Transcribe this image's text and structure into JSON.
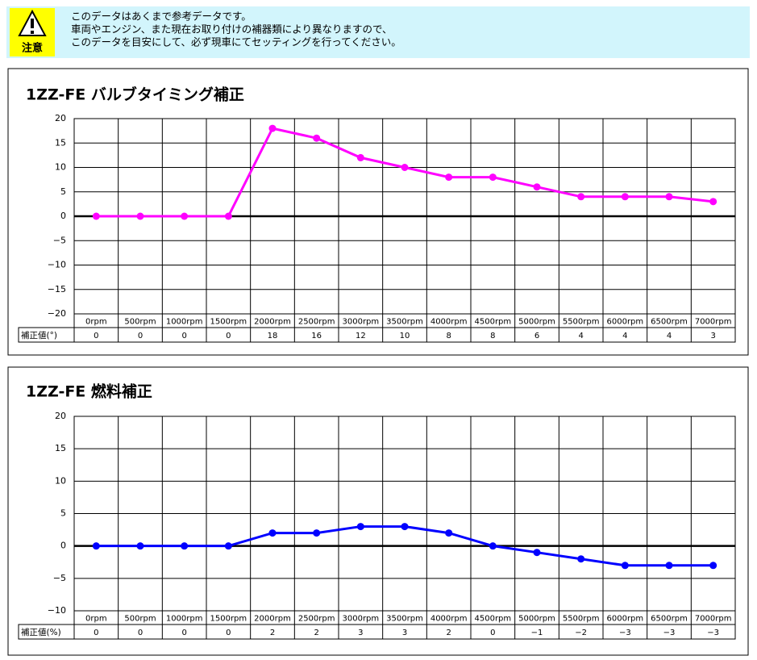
{
  "notice": {
    "label": "注意",
    "lines": [
      "このデータはあくまで参考データです。",
      "車両やエンジン、また現在お取り付けの補器類により異なりますので、",
      "このデータを目安にして、必ず現車にてセッティングを行ってください。"
    ]
  },
  "chart_data": [
    {
      "type": "line",
      "title": "1ZZ-FE バルブタイミング補正",
      "categories": [
        "0rpm",
        "500rpm",
        "1000rpm",
        "1500rpm",
        "2000rpm",
        "2500rpm",
        "3000rpm",
        "3500rpm",
        "4000rpm",
        "4500rpm",
        "5000rpm",
        "5500rpm",
        "6000rpm",
        "6500rpm",
        "7000rpm"
      ],
      "series": [
        {
          "name": "補正値(°)",
          "color": "#ff00ff",
          "values": [
            0,
            0,
            0,
            0,
            18,
            16,
            12,
            10,
            8,
            8,
            6,
            4,
            4,
            4,
            3
          ]
        }
      ],
      "ylim": [
        -20,
        20
      ],
      "yticks": [
        20,
        15,
        10,
        5,
        0,
        {
          "value": -5,
          "label": "−5"
        },
        {
          "value": -10,
          "label": "−10"
        },
        {
          "value": -15,
          "label": "−15"
        },
        {
          "value": -20,
          "label": "−20"
        }
      ],
      "grid": true
    },
    {
      "type": "line",
      "title": "1ZZ-FE 燃料補正",
      "categories": [
        "0rpm",
        "500rpm",
        "1000rpm",
        "1500rpm",
        "2000rpm",
        "2500rpm",
        "3000rpm",
        "3500rpm",
        "4000rpm",
        "4500rpm",
        "5000rpm",
        "5500rpm",
        "6000rpm",
        "6500rpm",
        "7000rpm"
      ],
      "series": [
        {
          "name": "補正値(%)",
          "color": "#0000ff",
          "values": [
            0,
            0,
            0,
            0,
            2,
            2,
            3,
            3,
            2,
            0,
            -1,
            -2,
            -3,
            -3,
            -3
          ],
          "value_labels": [
            "0",
            "0",
            "0",
            "0",
            "2",
            "2",
            "3",
            "3",
            "2",
            "0",
            "−1",
            "−2",
            "−3",
            "−3",
            "−3"
          ]
        }
      ],
      "ylim": [
        -10,
        20
      ],
      "yticks": [
        20,
        15,
        10,
        5,
        0,
        {
          "value": -5,
          "label": "−5"
        },
        {
          "value": -10,
          "label": "−10"
        }
      ],
      "grid": true
    }
  ]
}
